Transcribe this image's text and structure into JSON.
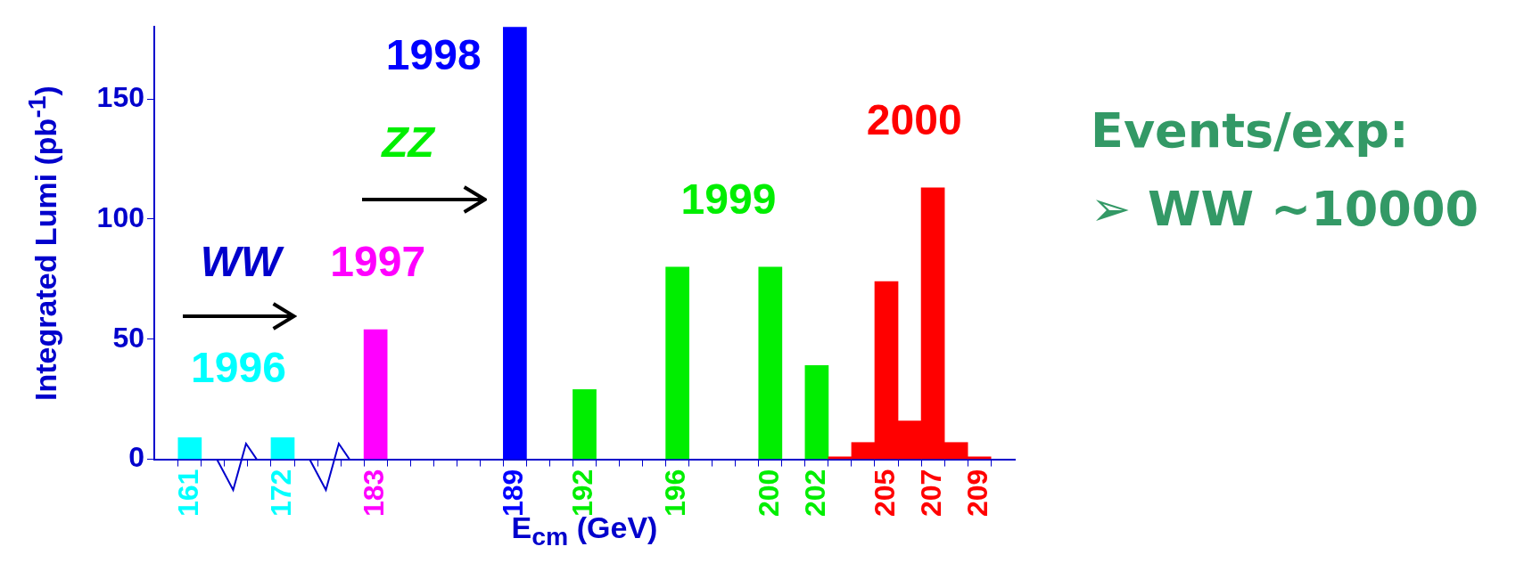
{
  "chart_data": {
    "type": "bar",
    "xlabel": "E$_{cm}$ (GeV)",
    "ylabel": "Integrated Lumi (pb$^{-1}$)",
    "categories": [
      "161",
      null,
      null,
      null,
      "172",
      null,
      null,
      null,
      "183",
      null,
      null,
      null,
      null,
      null,
      "189",
      null,
      null,
      "192",
      null,
      null,
      null,
      "196",
      null,
      null,
      null,
      "200",
      null,
      "202",
      null,
      null,
      "205",
      null,
      "207",
      null,
      "209"
    ],
    "values": [
      9,
      null,
      null,
      null,
      9,
      null,
      null,
      null,
      54,
      null,
      null,
      null,
      null,
      null,
      180,
      null,
      null,
      29,
      null,
      null,
      null,
      80,
      null,
      null,
      null,
      80,
      null,
      39,
      1,
      7,
      74,
      16,
      113,
      7,
      1
    ],
    "colors": [
      "#00ffff",
      null,
      null,
      null,
      "#00ffff",
      null,
      null,
      null,
      "#ff00ff",
      null,
      null,
      null,
      null,
      null,
      "#0000ff",
      null,
      null,
      "#00ee00",
      null,
      null,
      null,
      "#00ee00",
      null,
      null,
      null,
      "#00ee00",
      null,
      "#00ee00",
      "#ff0000",
      "#ff0000",
      "#ff0000",
      "#ff0000",
      "#ff0000",
      "#ff0000",
      "#ff0000"
    ],
    "ylim": [
      0,
      180
    ],
    "yticks": [
      0,
      50,
      100,
      150
    ],
    "annotations": [
      "1996",
      "1997",
      "1998",
      "1999",
      "2000",
      "WW",
      "ZZ",
      "Events/exp:",
      "➢ WW ~10000"
    ],
    "grid": false,
    "legend": false
  }
}
